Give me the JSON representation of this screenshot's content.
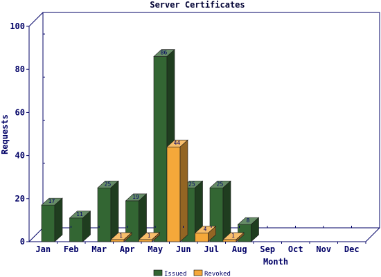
{
  "chart_data": {
    "type": "bar",
    "title": "Server Certificates",
    "xlabel": "Month",
    "ylabel": "Requests",
    "ylim": [
      0,
      100
    ],
    "yticks": [
      0,
      20,
      40,
      60,
      80,
      100
    ],
    "categories": [
      "Jan",
      "Feb",
      "Mar",
      "Apr",
      "May",
      "Jun",
      "Jul",
      "Aug",
      "Sep",
      "Oct",
      "Nov",
      "Dec"
    ],
    "series": [
      {
        "name": "Issued",
        "color": "#336633",
        "values": [
          17,
          11,
          25,
          19,
          86,
          25,
          25,
          8,
          null,
          null,
          null,
          null
        ],
        "labels": [
          "17",
          "11",
          "25",
          "19",
          "86",
          "25",
          "25",
          "8",
          "",
          "",
          "",
          ""
        ]
      },
      {
        "name": "Revoked",
        "color": "#F5A83A",
        "values": [
          null,
          null,
          1,
          1,
          44,
          4,
          1,
          null,
          null,
          null,
          null,
          null
        ],
        "labels": [
          "",
          "",
          "1",
          "1",
          "44",
          "4",
          "1",
          "",
          "",
          "",
          "",
          ""
        ]
      }
    ],
    "grid": false,
    "legend": "bottom"
  }
}
